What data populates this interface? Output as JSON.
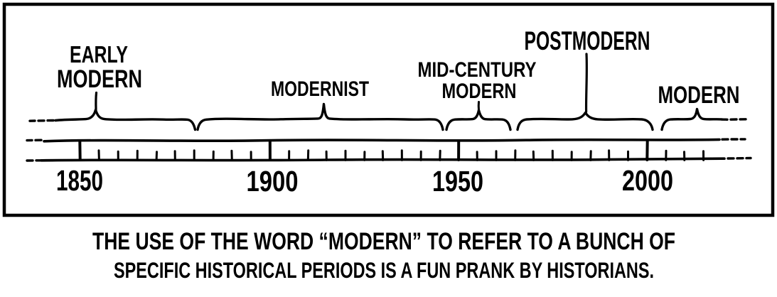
{
  "colors": {
    "ink": "#000000",
    "paper": "#ffffff"
  },
  "periods": [
    {
      "name": "Early Modern",
      "lines": [
        "EARLY",
        "MODERN"
      ]
    },
    {
      "name": "Modernist",
      "lines": [
        "MODERNIST"
      ]
    },
    {
      "name": "Mid-Century Modern",
      "lines": [
        "MID-CENTURY",
        "MODERN"
      ]
    },
    {
      "name": "Postmodern",
      "lines": [
        "POSTMODERN"
      ]
    },
    {
      "name": "Modern",
      "lines": [
        "MODERN"
      ]
    }
  ],
  "timeline": {
    "year_labels": [
      "1850",
      "1900",
      "1950",
      "2000"
    ],
    "minor_tick_interval_years": 5,
    "continues_into_past": true,
    "continues_into_future": true
  },
  "caption": {
    "lines": [
      "THE USE OF THE WORD “MODERN” TO REFER TO A BUNCH OF",
      "SPECIFIC HISTORICAL PERIODS IS A FUN PRANK BY HISTORIANS."
    ]
  },
  "chart_data": {
    "type": "timeline",
    "title": "",
    "axis": {
      "unit": "year",
      "visible_range": [
        1840,
        2019
      ],
      "major_ticks": [
        1850,
        1900,
        1950,
        2000
      ],
      "minor_tick_interval": 5,
      "open_left": true,
      "open_right": true
    },
    "periods": [
      {
        "label": "EARLY MODERN",
        "start": 1843,
        "end": 1881,
        "open_start": true
      },
      {
        "label": "MODERNIST",
        "start": 1885,
        "end": 1946
      },
      {
        "label": "MID-CENTURY MODERN",
        "start": 1947,
        "end": 1964
      },
      {
        "label": "POSTMODERN",
        "start": 1966,
        "end": 2001
      },
      {
        "label": "MODERN",
        "start": 2004,
        "end": 2021,
        "open_end": true
      }
    ]
  }
}
